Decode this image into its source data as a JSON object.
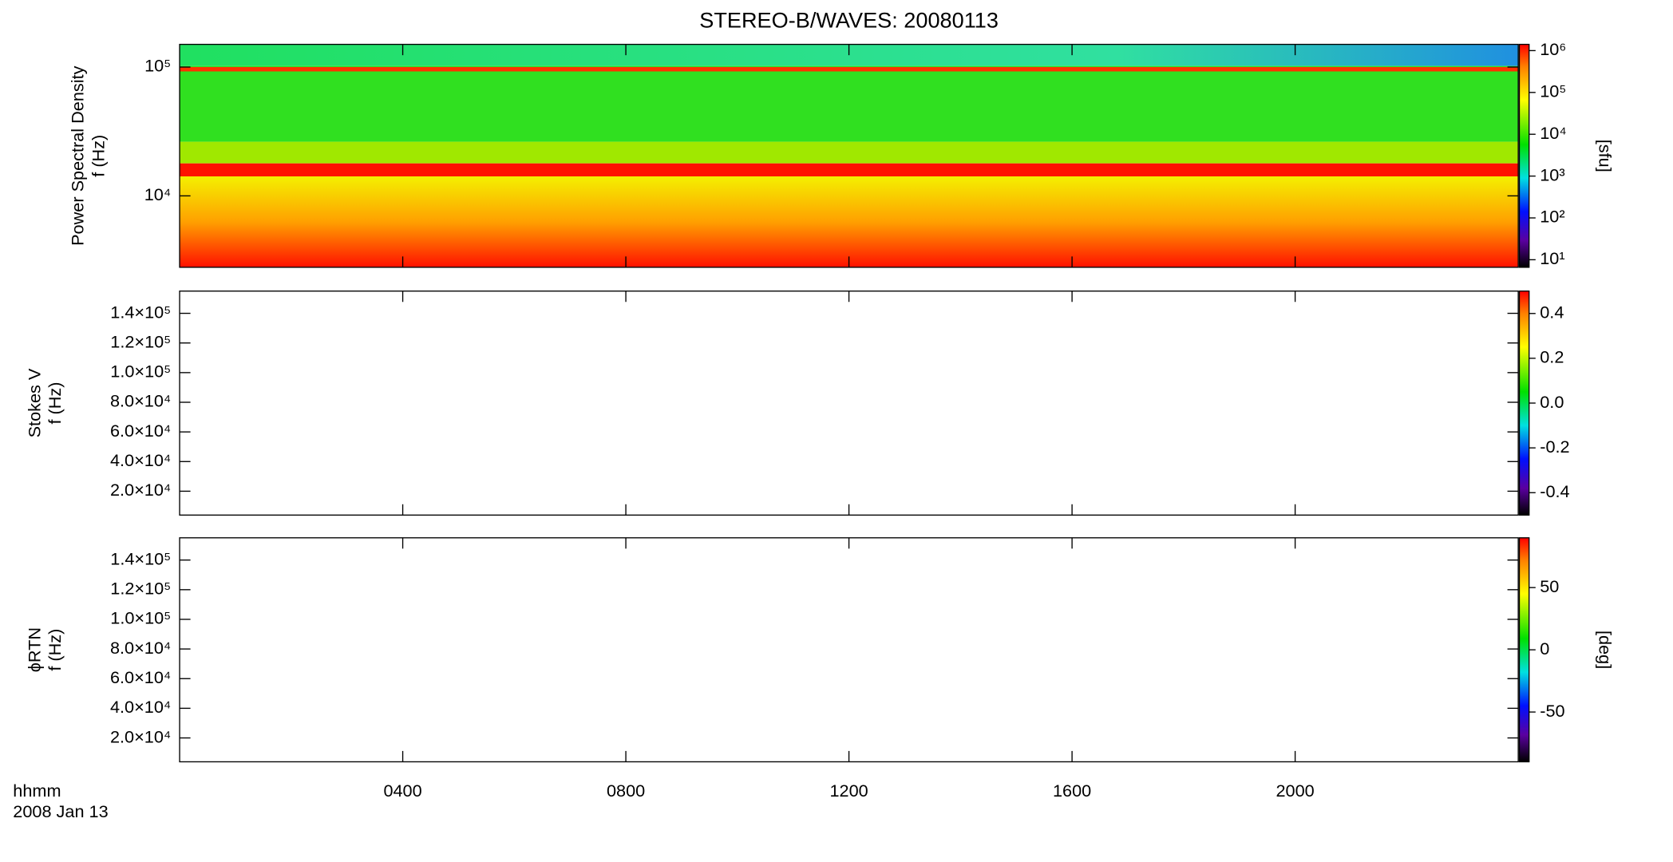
{
  "chart_data": [
    {
      "type": "heatmap",
      "title": "STEREO-B/WAVES: 20080113",
      "ylabel": [
        "Power Spectral Density",
        "f (Hz)"
      ],
      "ylog": true,
      "ylim": [
        2790,
        150000
      ],
      "yticks": [
        {
          "value": 10000,
          "label": "10⁴"
        },
        {
          "value": 100000,
          "label": "10⁵"
        }
      ],
      "colorbar": {
        "log": true,
        "lim": [
          6.6,
          1410000
        ],
        "ticks": [
          {
            "value": 10,
            "label": "10¹"
          },
          {
            "value": 100,
            "label": "10²"
          },
          {
            "value": 1000,
            "label": "10³"
          },
          {
            "value": 10000,
            "label": "10⁴"
          },
          {
            "value": 100000,
            "label": "10⁵"
          },
          {
            "value": 1000000,
            "label": "10⁶"
          }
        ],
        "label": "[sfu]"
      }
    },
    {
      "type": "heatmap",
      "ylabel": [
        "Stokes V",
        "f (Hz)"
      ],
      "ylim": [
        3900,
        155000
      ],
      "yticks": [
        {
          "value": 20000,
          "label": "2.0×10⁴"
        },
        {
          "value": 40000,
          "label": "4.0×10⁴"
        },
        {
          "value": 60000,
          "label": "6.0×10⁴"
        },
        {
          "value": 80000,
          "label": "8.0×10⁴"
        },
        {
          "value": 100000,
          "label": "1.0×10⁵"
        },
        {
          "value": 120000,
          "label": "1.2×10⁵"
        },
        {
          "value": 140000,
          "label": "1.4×10⁵"
        }
      ],
      "colorbar": {
        "lim": [
          -0.5,
          0.5
        ],
        "ticks": [
          -0.4,
          -0.2,
          {
            "value": 0,
            "label": "0.0"
          },
          0.2,
          0.4
        ]
      }
    },
    {
      "type": "heatmap",
      "ylabel": [
        "ϕRTN",
        "f (Hz)"
      ],
      "ylim": [
        3900,
        155000
      ],
      "yticks": [
        {
          "value": 20000,
          "label": "2.0×10⁴"
        },
        {
          "value": 40000,
          "label": "4.0×10⁴"
        },
        {
          "value": 60000,
          "label": "6.0×10⁴"
        },
        {
          "value": 80000,
          "label": "8.0×10⁴"
        },
        {
          "value": 100000,
          "label": "1.0×10⁵"
        },
        {
          "value": 120000,
          "label": "1.2×10⁵"
        },
        {
          "value": 140000,
          "label": "1.4×10⁵"
        }
      ],
      "colorbar": {
        "lim": [
          -90,
          90
        ],
        "ticks": [
          -50,
          0,
          50
        ],
        "label": "[deg]"
      },
      "xlim": [
        0,
        24
      ],
      "xticks": [
        {
          "value": 4,
          "label": "0400"
        },
        {
          "value": 8,
          "label": "0800"
        },
        {
          "value": 12,
          "label": "1200"
        },
        {
          "value": 16,
          "label": "1600"
        },
        {
          "value": 20,
          "label": "2000"
        }
      ],
      "xlabel": [
        "hhmm",
        "2008 Jan 13"
      ]
    }
  ]
}
